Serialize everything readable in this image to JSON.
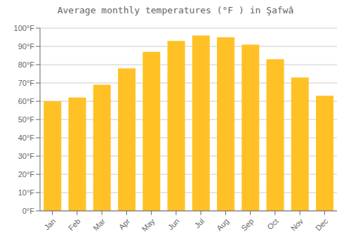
{
  "chart_data": {
    "type": "bar",
    "title": "Average monthly temperatures (°F ) in Şafwâ",
    "categories": [
      "Jan",
      "Feb",
      "Mar",
      "Apr",
      "May",
      "Jun",
      "Jul",
      "Aug",
      "Sep",
      "Oct",
      "Nov",
      "Dec"
    ],
    "values": [
      60,
      62,
      69,
      78,
      87,
      93,
      96,
      95,
      91,
      83,
      73,
      63
    ],
    "color": "#FFC125",
    "ylim": [
      0,
      100
    ],
    "yticks": [
      {
        "value": 0,
        "label": "0°F"
      },
      {
        "value": 10,
        "label": "10°F"
      },
      {
        "value": 20,
        "label": "20°F"
      },
      {
        "value": 30,
        "label": "30°F"
      },
      {
        "value": 40,
        "label": "40°F"
      },
      {
        "value": 50,
        "label": "50°F"
      },
      {
        "value": 60,
        "label": "60°F"
      },
      {
        "value": 70,
        "label": "70°F"
      },
      {
        "value": 80,
        "label": "80°F"
      },
      {
        "value": 90,
        "label": "90°F"
      },
      {
        "value": 100,
        "label": "100°F"
      }
    ],
    "grid": true
  }
}
